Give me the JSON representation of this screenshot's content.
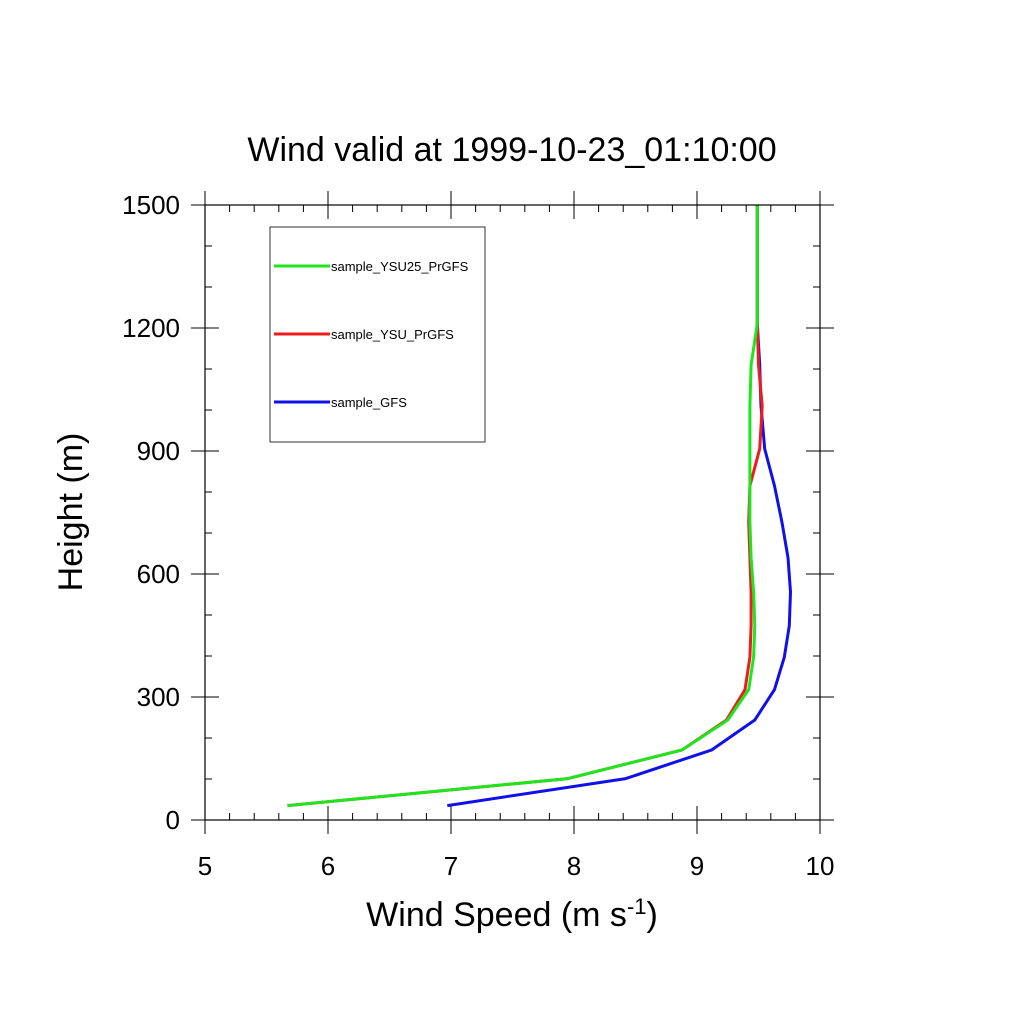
{
  "chart_data": {
    "type": "line",
    "title": "Wind valid at 1999-10-23_01:10:00",
    "xlabel": "Wind Speed (m s",
    "xlabel_sup": "-1",
    "xlabel_end": ")",
    "ylabel": "Height (m)",
    "xlim": [
      5,
      10
    ],
    "ylim": [
      0,
      1500
    ],
    "xticks": [
      5,
      6,
      7,
      8,
      9,
      10
    ],
    "xtick_labels": [
      "5",
      "6",
      "7",
      "8",
      "9",
      "10"
    ],
    "yticks": [
      0,
      300,
      600,
      900,
      1200,
      1500
    ],
    "ytick_labels": [
      "0",
      "300",
      "600",
      "900",
      "1200",
      "1500"
    ],
    "grid": false,
    "legend_position": "top-left",
    "series": [
      {
        "name": "sample_YSU25_PrGFS",
        "color": "#1ee61e",
        "points": [
          [
            5.67,
            35
          ],
          [
            7.95,
            101
          ],
          [
            8.88,
            171
          ],
          [
            9.25,
            244
          ],
          [
            9.42,
            318
          ],
          [
            9.46,
            397
          ],
          [
            9.47,
            474
          ],
          [
            9.46,
            556
          ],
          [
            9.44,
            640
          ],
          [
            9.43,
            727
          ],
          [
            9.43,
            815
          ],
          [
            9.43,
            905
          ],
          [
            9.43,
            1010
          ],
          [
            9.44,
            1110
          ],
          [
            9.49,
            1210
          ],
          [
            9.49,
            1320
          ],
          [
            9.49,
            1500
          ]
        ]
      },
      {
        "name": "sample_YSU_PrGFS",
        "color": "#ee1c1c",
        "points": [
          [
            5.67,
            35
          ],
          [
            7.95,
            101
          ],
          [
            8.88,
            171
          ],
          [
            9.24,
            244
          ],
          [
            9.39,
            318
          ],
          [
            9.43,
            397
          ],
          [
            9.44,
            474
          ],
          [
            9.44,
            556
          ],
          [
            9.43,
            640
          ],
          [
            9.42,
            727
          ],
          [
            9.43,
            815
          ],
          [
            9.51,
            905
          ],
          [
            9.53,
            1010
          ],
          [
            9.5,
            1110
          ],
          [
            9.49,
            1210
          ],
          [
            9.49,
            1320
          ],
          [
            9.49,
            1500
          ]
        ]
      },
      {
        "name": "sample_GFS",
        "color": "#1010e8",
        "points": [
          [
            6.97,
            35
          ],
          [
            8.42,
            101
          ],
          [
            9.12,
            171
          ],
          [
            9.47,
            244
          ],
          [
            9.63,
            318
          ],
          [
            9.71,
            397
          ],
          [
            9.75,
            474
          ],
          [
            9.76,
            556
          ],
          [
            9.74,
            640
          ],
          [
            9.69,
            727
          ],
          [
            9.63,
            815
          ],
          [
            9.55,
            905
          ],
          [
            9.52,
            1010
          ],
          [
            9.51,
            1110
          ],
          [
            9.49,
            1210
          ],
          [
            9.49,
            1320
          ],
          [
            9.49,
            1500
          ]
        ]
      }
    ]
  }
}
